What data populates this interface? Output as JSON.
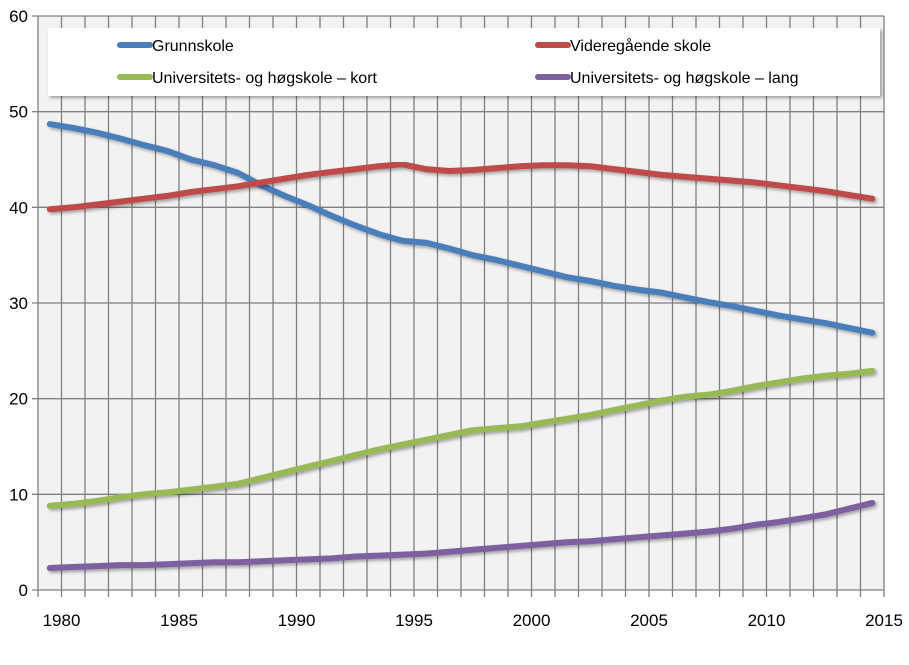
{
  "chart_data": {
    "type": "line",
    "title": "",
    "xlabel": "",
    "ylabel": "",
    "ylim": [
      0,
      60
    ],
    "yticks": [
      0,
      10,
      20,
      30,
      40,
      50,
      60
    ],
    "xtick_labels": [
      "1980",
      "1985",
      "1990",
      "1995",
      "2000",
      "2005",
      "2010",
      "2015"
    ],
    "grid": true,
    "legend_placement": "top",
    "x": [
      1980,
      1981,
      1982,
      1983,
      1984,
      1985,
      1986,
      1987,
      1988,
      1989,
      1990,
      1991,
      1992,
      1993,
      1994,
      1995,
      1996,
      1997,
      1998,
      1999,
      2000,
      2001,
      2002,
      2003,
      2004,
      2005,
      2006,
      2007,
      2008,
      2009,
      2010,
      2011,
      2012,
      2013,
      2014,
      2015
    ],
    "series": [
      {
        "name": "Grunnskole",
        "color": "#4a7ebb",
        "values": [
          48.7,
          48.3,
          47.8,
          47.2,
          46.5,
          45.9,
          45.0,
          44.4,
          43.6,
          42.3,
          41.2,
          40.2,
          39.1,
          38.1,
          37.2,
          36.5,
          36.3,
          35.7,
          35.0,
          34.5,
          33.9,
          33.3,
          32.7,
          32.3,
          31.8,
          31.4,
          31.1,
          30.6,
          30.1,
          29.7,
          29.2,
          28.7,
          28.3,
          27.9,
          27.4,
          26.9
        ]
      },
      {
        "name": "Videregående skole",
        "color": "#be4b48",
        "values": [
          39.8,
          40.0,
          40.3,
          40.6,
          40.9,
          41.2,
          41.6,
          41.9,
          42.2,
          42.6,
          43.0,
          43.4,
          43.7,
          44.0,
          44.3,
          44.5,
          44.0,
          43.8,
          43.9,
          44.1,
          44.3,
          44.4,
          44.4,
          44.3,
          44.0,
          43.7,
          43.4,
          43.2,
          43.0,
          42.8,
          42.6,
          42.3,
          42.0,
          41.7,
          41.3,
          40.9
        ]
      },
      {
        "name": "Universitets- og høgskole – kort",
        "color": "#98b954",
        "values": [
          8.8,
          9.0,
          9.3,
          9.7,
          10.0,
          10.2,
          10.5,
          10.8,
          11.1,
          11.7,
          12.3,
          12.9,
          13.5,
          14.1,
          14.7,
          15.2,
          15.7,
          16.2,
          16.7,
          16.9,
          17.1,
          17.5,
          17.9,
          18.3,
          18.8,
          19.3,
          19.8,
          20.2,
          20.4,
          20.8,
          21.3,
          21.7,
          22.1,
          22.4,
          22.6,
          22.9
        ]
      },
      {
        "name": "Universitets- og høgskole – lang",
        "color": "#7d60a0",
        "values": [
          2.3,
          2.4,
          2.5,
          2.6,
          2.6,
          2.7,
          2.8,
          2.9,
          2.9,
          3.0,
          3.1,
          3.2,
          3.3,
          3.5,
          3.6,
          3.7,
          3.8,
          4.0,
          4.2,
          4.4,
          4.6,
          4.8,
          5.0,
          5.1,
          5.3,
          5.5,
          5.7,
          5.9,
          6.1,
          6.4,
          6.8,
          7.1,
          7.5,
          7.9,
          8.5,
          9.1
        ]
      }
    ]
  }
}
